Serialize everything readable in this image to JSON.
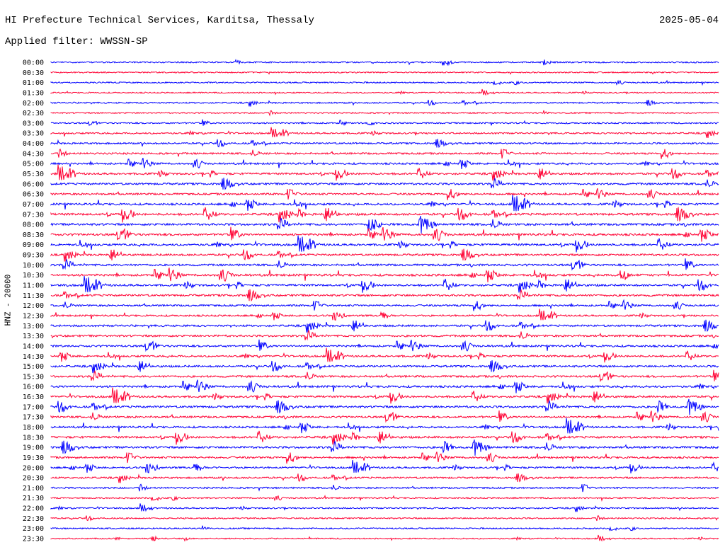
{
  "header": {
    "title": "HI Prefecture Technical Services, Karditsa, Thessaly",
    "date": "2025-05-04",
    "filter": "Applied filter: WWSSN-SP"
  },
  "chart_data": {
    "type": "line",
    "title": "HI Prefecture Technical Services, Karditsa, Thessaly",
    "ylabel": "HNZ - 20000",
    "xlabel": "",
    "colors": [
      "#0000ff",
      "#ff0033"
    ],
    "rows": [
      "00:00",
      "00:30",
      "01:00",
      "01:30",
      "02:00",
      "02:30",
      "03:00",
      "03:30",
      "04:00",
      "04:30",
      "05:00",
      "05:30",
      "06:00",
      "06:30",
      "07:00",
      "07:30",
      "08:00",
      "08:30",
      "09:00",
      "09:30",
      "10:00",
      "10:30",
      "11:00",
      "11:30",
      "12:00",
      "12:30",
      "13:00",
      "13:30",
      "14:00",
      "14:30",
      "15:00",
      "15:30",
      "16:00",
      "16:30",
      "17:00",
      "17:30",
      "18:00",
      "18:30",
      "19:00",
      "19:30",
      "20:00",
      "20:30",
      "21:00",
      "21:30",
      "22:00",
      "22:30",
      "23:00",
      "23:30"
    ],
    "activity": [
      0.3,
      0.2,
      0.25,
      0.2,
      0.3,
      0.2,
      0.3,
      0.4,
      0.45,
      0.5,
      0.55,
      0.6,
      0.6,
      0.55,
      0.65,
      0.7,
      0.7,
      0.7,
      0.65,
      0.6,
      0.6,
      0.7,
      0.65,
      0.6,
      0.5,
      0.45,
      0.6,
      0.6,
      0.6,
      0.55,
      0.6,
      0.6,
      0.65,
      0.6,
      0.65,
      0.6,
      0.6,
      0.65,
      0.65,
      0.55,
      0.5,
      0.45,
      0.4,
      0.3,
      0.3,
      0.25,
      0.25,
      0.2
    ]
  }
}
